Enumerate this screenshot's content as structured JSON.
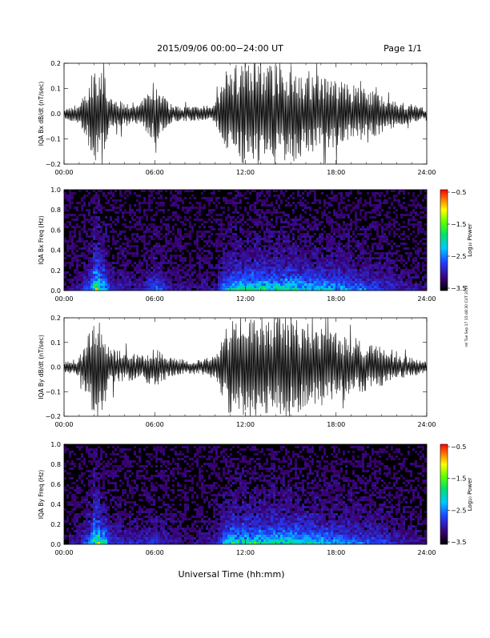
{
  "header": {
    "title": "2015/09/06  00:00−24:00 UT",
    "page": "Page 1/1"
  },
  "footer": {
    "xlabel": "Universal Time (hh:mm)",
    "side_stamp": "rel Tue Sep 17 15:48:30 CUT 2019"
  },
  "chart_data": [
    {
      "type": "line",
      "panel": "bx_waveform",
      "ylabel": "IQA Bx dB/dt (nT/sec)",
      "x_unit": "hours UT",
      "xlim": [
        0,
        24
      ],
      "ylim": [
        -0.2,
        0.2
      ],
      "x_ticks": [
        "00:00",
        "06:00",
        "12:00",
        "18:00",
        "24:00"
      ],
      "y_ticks": [
        "−0.2",
        "−0.1",
        "0.0",
        "0.1",
        "0.2"
      ],
      "series": [
        {
          "x": [
            0,
            1,
            1.5,
            2,
            2.5,
            3,
            4,
            5,
            6,
            7,
            8,
            9,
            10,
            10.5,
            11,
            11.5,
            12,
            12.5,
            13,
            13.5,
            14,
            15,
            16,
            17,
            18,
            19,
            20,
            21,
            22,
            23,
            24
          ],
          "envelope": [
            0.02,
            0.04,
            0.1,
            0.2,
            0.2,
            0.06,
            0.05,
            0.04,
            0.12,
            0.04,
            0.03,
            0.03,
            0.04,
            0.12,
            0.18,
            0.2,
            0.2,
            0.2,
            0.2,
            0.2,
            0.2,
            0.2,
            0.16,
            0.15,
            0.14,
            0.12,
            0.1,
            0.08,
            0.05,
            0.04,
            0.02
          ]
        }
      ]
    },
    {
      "type": "heatmap",
      "panel": "bx_spectrogram",
      "ylabel": "IQA Bx Freq (Hz)",
      "x_unit": "hours UT",
      "xlim": [
        0,
        24
      ],
      "ylim": [
        0,
        1.0
      ],
      "x_ticks": [
        "00:00",
        "06:00",
        "12:00",
        "18:00",
        "24:00"
      ],
      "y_ticks": [
        "0.0",
        "0.2",
        "0.4",
        "0.6",
        "0.8",
        "1.0"
      ],
      "colorbar": {
        "label": "Log₁₀ Power",
        "range": [
          -3.5,
          -0.5
        ],
        "ticks": [
          "−0.5",
          "−1.5",
          "−2.5",
          "−3.5"
        ]
      }
    },
    {
      "type": "line",
      "panel": "by_waveform",
      "ylabel": "IQA By dB/dt (nT/sec)",
      "x_unit": "hours UT",
      "xlim": [
        0,
        24
      ],
      "ylim": [
        -0.2,
        0.2
      ],
      "x_ticks": [
        "00:00",
        "06:00",
        "12:00",
        "18:00",
        "24:00"
      ],
      "y_ticks": [
        "−0.2",
        "−0.1",
        "0.0",
        "0.1",
        "0.2"
      ],
      "series": [
        {
          "x": [
            0,
            1,
            1.5,
            2,
            2.5,
            3,
            4,
            5,
            6,
            7,
            8,
            9,
            10,
            10.5,
            11,
            11.5,
            12,
            12.5,
            13,
            13.5,
            14,
            15,
            16,
            17,
            18,
            19,
            20,
            21,
            22,
            23,
            24
          ],
          "envelope": [
            0.02,
            0.04,
            0.12,
            0.2,
            0.2,
            0.08,
            0.06,
            0.05,
            0.08,
            0.04,
            0.03,
            0.03,
            0.05,
            0.14,
            0.2,
            0.2,
            0.2,
            0.2,
            0.2,
            0.2,
            0.2,
            0.2,
            0.18,
            0.16,
            0.14,
            0.12,
            0.1,
            0.08,
            0.05,
            0.04,
            0.02
          ]
        }
      ]
    },
    {
      "type": "heatmap",
      "panel": "by_spectrogram",
      "ylabel": "IQA By Freq (Hz)",
      "x_unit": "hours UT",
      "xlim": [
        0,
        24
      ],
      "ylim": [
        0,
        1.0
      ],
      "x_ticks": [
        "00:00",
        "06:00",
        "12:00",
        "18:00",
        "24:00"
      ],
      "y_ticks": [
        "0.0",
        "0.2",
        "0.4",
        "0.6",
        "0.8",
        "1.0"
      ],
      "colorbar": {
        "label": "Log₁₀ Power",
        "range": [
          -3.5,
          -0.5
        ],
        "ticks": [
          "−0.5",
          "−1.5",
          "−2.5",
          "−3.5"
        ]
      }
    }
  ]
}
